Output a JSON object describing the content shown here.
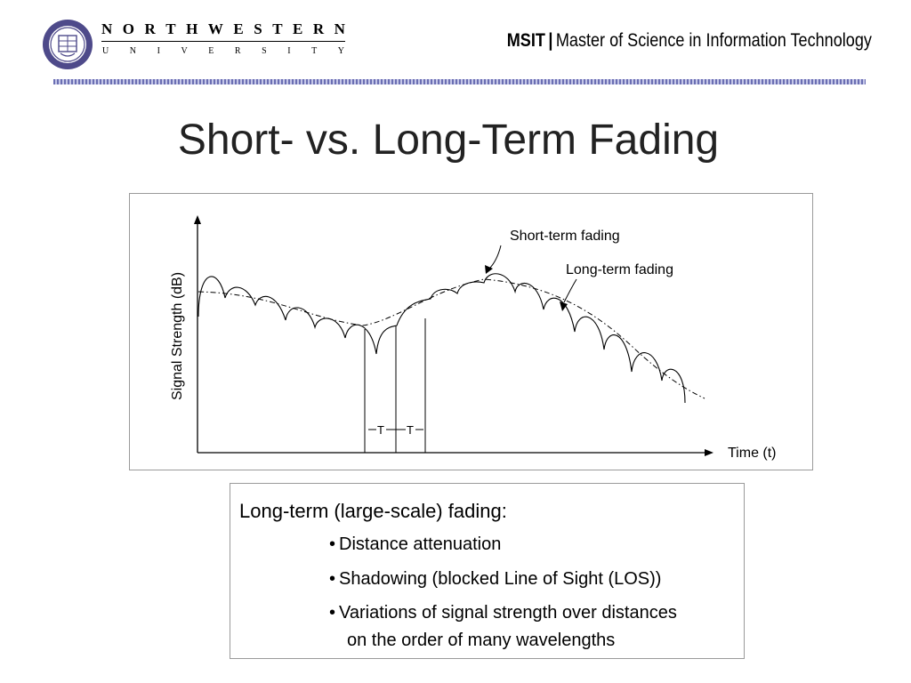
{
  "header": {
    "university_top": [
      "N",
      "O",
      "R",
      "T",
      "H",
      "W",
      "E",
      "S",
      "T",
      "E",
      "R",
      "N"
    ],
    "university_bottom": [
      "U",
      "N",
      "I",
      "V",
      "E",
      "R",
      "S",
      "I",
      "T",
      "Y"
    ],
    "program_code": "MSIT",
    "program_separator": "|",
    "program_name": "Master of Science in Information Technology"
  },
  "slide": {
    "title": "Short- vs. Long-Term Fading"
  },
  "figure": {
    "y_axis_label": "Signal Strength (dB)",
    "x_axis_label": "Time (t)",
    "short_term_label": "Short-term fading",
    "long_term_label": "Long-term fading",
    "period_label_1": "T",
    "period_label_2": "T"
  },
  "text_box": {
    "heading": "Long-term (large-scale) fading:",
    "bullet": "•",
    "items": [
      "Distance attenuation",
      "Shadowing (blocked Line of Sight (LOS))",
      "Variations of signal strength over distances"
    ],
    "item_continuation": "on the order of many wavelengths"
  },
  "colors": {
    "accent_band": "#6b6fb3",
    "box_border": "#9a9a9a"
  }
}
